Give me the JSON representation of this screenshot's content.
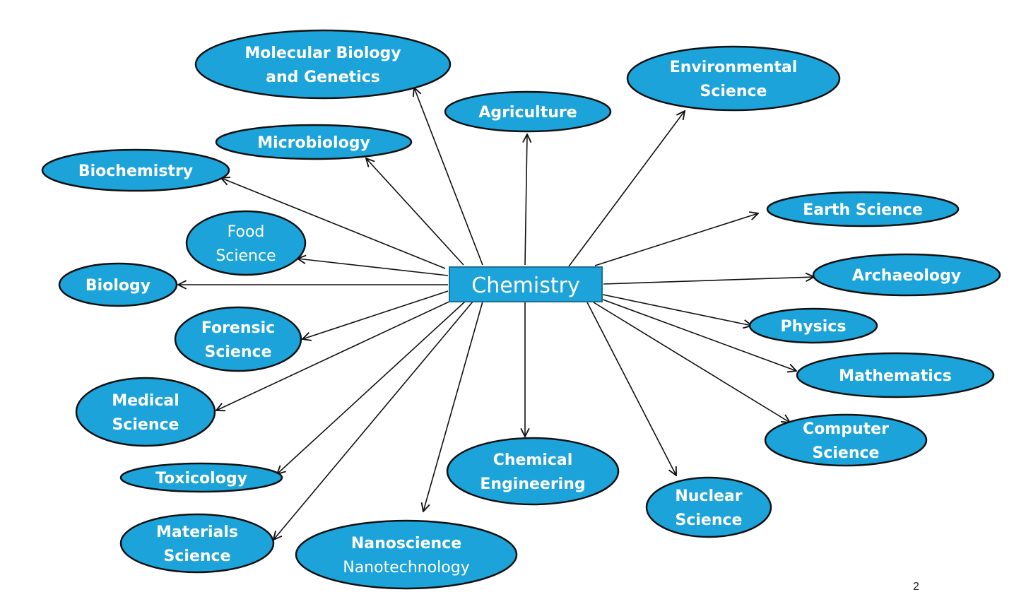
{
  "diagram": {
    "title": "Chemistry",
    "colors": {
      "node_fill": "#1ba3da",
      "node_stroke": "#111111",
      "text": "#ffffff",
      "arrow": "#111111"
    },
    "topics": [
      {
        "id": "molecular-biology",
        "lines": [
          "Molecular Biology",
          "and Genetics"
        ]
      },
      {
        "id": "environmental-science",
        "lines": [
          "Environmental",
          "Science"
        ]
      },
      {
        "id": "agriculture",
        "lines": [
          "Agriculture"
        ]
      },
      {
        "id": "microbiology",
        "lines": [
          "Microbiology"
        ]
      },
      {
        "id": "biochemistry",
        "lines": [
          "Biochemistry"
        ]
      },
      {
        "id": "earth-science",
        "lines": [
          "Earth Science"
        ]
      },
      {
        "id": "food-science",
        "lines": [
          "Food",
          "Science"
        ],
        "light": true
      },
      {
        "id": "archaeology",
        "lines": [
          "Archaeology"
        ]
      },
      {
        "id": "biology",
        "lines": [
          "Biology"
        ]
      },
      {
        "id": "physics",
        "lines": [
          "Physics"
        ]
      },
      {
        "id": "forensic-science",
        "lines": [
          "Forensic",
          "Science"
        ]
      },
      {
        "id": "mathematics",
        "lines": [
          "Mathematics"
        ]
      },
      {
        "id": "medical-science",
        "lines": [
          "Medical",
          "Science"
        ]
      },
      {
        "id": "computer-science",
        "lines": [
          "Computer",
          "Science"
        ]
      },
      {
        "id": "chemical-engineering",
        "lines": [
          "Chemical",
          "Engineering"
        ]
      },
      {
        "id": "toxicology",
        "lines": [
          "Toxicology"
        ]
      },
      {
        "id": "nuclear-science",
        "lines": [
          "Nuclear",
          "Science"
        ]
      },
      {
        "id": "materials-science",
        "lines": [
          "Materials",
          "Science"
        ]
      },
      {
        "id": "nanoscience",
        "lines": [
          "Nanoscience",
          "Nanotechnology"
        ],
        "light_second": true
      }
    ]
  },
  "page_number": "2"
}
